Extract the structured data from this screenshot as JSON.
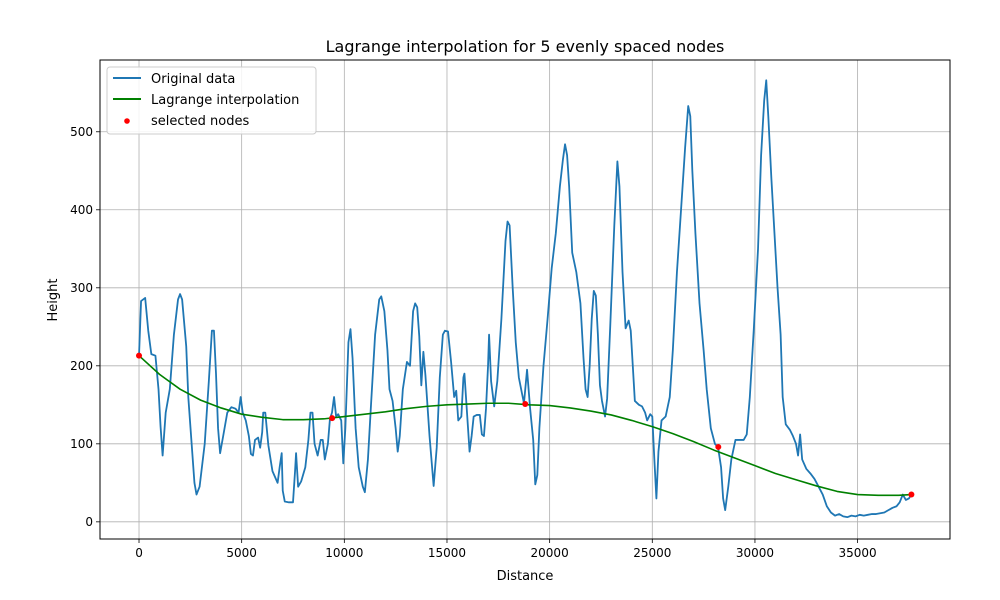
{
  "chart_data": {
    "type": "line",
    "title": "Lagrange interpolation for 5 evenly spaced nodes",
    "xlabel": "Distance",
    "ylabel": "Height",
    "xlim": [
      -1900,
      39500
    ],
    "ylim": [
      -22,
      592
    ],
    "x_ticks": [
      0,
      5000,
      10000,
      15000,
      20000,
      25000,
      30000,
      35000
    ],
    "y_ticks": [
      0,
      100,
      200,
      300,
      400,
      500
    ],
    "grid": true,
    "legend_position": "top-left",
    "legend": [
      "Original data",
      "Lagrange interpolation",
      "selected nodes"
    ],
    "colors": {
      "original": "#1f77b4",
      "lagrange": "#008000",
      "nodes": "#ff0000",
      "grid": "#b0b0b0"
    },
    "series": [
      {
        "name": "Original data",
        "points": [
          [
            0,
            213
          ],
          [
            100,
            283
          ],
          [
            300,
            287
          ],
          [
            450,
            245
          ],
          [
            600,
            215
          ],
          [
            800,
            213
          ],
          [
            950,
            170
          ],
          [
            1050,
            122
          ],
          [
            1150,
            85
          ],
          [
            1300,
            140
          ],
          [
            1500,
            170
          ],
          [
            1700,
            240
          ],
          [
            1900,
            285
          ],
          [
            2000,
            292
          ],
          [
            2100,
            285
          ],
          [
            2300,
            225
          ],
          [
            2400,
            160
          ],
          [
            2550,
            105
          ],
          [
            2700,
            50
          ],
          [
            2800,
            35
          ],
          [
            2950,
            45
          ],
          [
            3200,
            100
          ],
          [
            3400,
            180
          ],
          [
            3550,
            245
          ],
          [
            3650,
            245
          ],
          [
            3750,
            190
          ],
          [
            3850,
            120
          ],
          [
            3950,
            88
          ],
          [
            4100,
            110
          ],
          [
            4300,
            140
          ],
          [
            4500,
            147
          ],
          [
            4700,
            145
          ],
          [
            4850,
            140
          ],
          [
            4950,
            160
          ],
          [
            5050,
            140
          ],
          [
            5200,
            130
          ],
          [
            5350,
            110
          ],
          [
            5450,
            87
          ],
          [
            5550,
            85
          ],
          [
            5650,
            105
          ],
          [
            5800,
            108
          ],
          [
            5900,
            95
          ],
          [
            6000,
            115
          ],
          [
            6050,
            140
          ],
          [
            6150,
            140
          ],
          [
            6300,
            98
          ],
          [
            6500,
            65
          ],
          [
            6750,
            50
          ],
          [
            6850,
            70
          ],
          [
            6950,
            88
          ],
          [
            7000,
            40
          ],
          [
            7100,
            26
          ],
          [
            7300,
            25
          ],
          [
            7500,
            25
          ],
          [
            7600,
            65
          ],
          [
            7650,
            88
          ],
          [
            7750,
            45
          ],
          [
            7900,
            52
          ],
          [
            8100,
            70
          ],
          [
            8250,
            105
          ],
          [
            8350,
            140
          ],
          [
            8450,
            140
          ],
          [
            8550,
            100
          ],
          [
            8700,
            85
          ],
          [
            8850,
            105
          ],
          [
            8950,
            105
          ],
          [
            9050,
            80
          ],
          [
            9200,
            100
          ],
          [
            9300,
            132
          ],
          [
            9400,
            140
          ],
          [
            9500,
            160
          ],
          [
            9600,
            135
          ],
          [
            9700,
            138
          ],
          [
            9850,
            130
          ],
          [
            9950,
            75
          ],
          [
            10050,
            120
          ],
          [
            10200,
            230
          ],
          [
            10300,
            247
          ],
          [
            10400,
            210
          ],
          [
            10550,
            120
          ],
          [
            10700,
            70
          ],
          [
            10900,
            45
          ],
          [
            11000,
            38
          ],
          [
            11150,
            80
          ],
          [
            11300,
            150
          ],
          [
            11500,
            240
          ],
          [
            11700,
            285
          ],
          [
            11800,
            289
          ],
          [
            11950,
            270
          ],
          [
            12100,
            220
          ],
          [
            12200,
            170
          ],
          [
            12350,
            155
          ],
          [
            12500,
            120
          ],
          [
            12600,
            90
          ],
          [
            12700,
            110
          ],
          [
            12850,
            170
          ],
          [
            13050,
            205
          ],
          [
            13200,
            200
          ],
          [
            13350,
            270
          ],
          [
            13450,
            280
          ],
          [
            13550,
            275
          ],
          [
            13650,
            238
          ],
          [
            13750,
            175
          ],
          [
            13850,
            218
          ],
          [
            13950,
            188
          ],
          [
            14150,
            110
          ],
          [
            14350,
            46
          ],
          [
            14500,
            95
          ],
          [
            14650,
            185
          ],
          [
            14800,
            240
          ],
          [
            14900,
            245
          ],
          [
            15050,
            244
          ],
          [
            15200,
            205
          ],
          [
            15350,
            160
          ],
          [
            15450,
            168
          ],
          [
            15550,
            130
          ],
          [
            15700,
            135
          ],
          [
            15800,
            185
          ],
          [
            15850,
            190
          ],
          [
            15950,
            150
          ],
          [
            16100,
            90
          ],
          [
            16200,
            110
          ],
          [
            16300,
            135
          ],
          [
            16450,
            137
          ],
          [
            16600,
            137
          ],
          [
            16700,
            112
          ],
          [
            16800,
            110
          ],
          [
            16900,
            145
          ],
          [
            17000,
            200
          ],
          [
            17050,
            240
          ],
          [
            17150,
            180
          ],
          [
            17300,
            148
          ],
          [
            17450,
            180
          ],
          [
            17650,
            260
          ],
          [
            17850,
            360
          ],
          [
            17950,
            385
          ],
          [
            18050,
            380
          ],
          [
            18200,
            300
          ],
          [
            18350,
            230
          ],
          [
            18500,
            185
          ],
          [
            18650,
            165
          ],
          [
            18750,
            152
          ],
          [
            18900,
            195
          ],
          [
            19050,
            145
          ],
          [
            19200,
            105
          ],
          [
            19300,
            48
          ],
          [
            19400,
            60
          ],
          [
            19500,
            120
          ],
          [
            19700,
            200
          ],
          [
            19900,
            260
          ],
          [
            20100,
            325
          ],
          [
            20300,
            370
          ],
          [
            20500,
            430
          ],
          [
            20650,
            465
          ],
          [
            20750,
            484
          ],
          [
            20850,
            470
          ],
          [
            20950,
            430
          ],
          [
            21100,
            345
          ],
          [
            21300,
            320
          ],
          [
            21500,
            280
          ],
          [
            21650,
            210
          ],
          [
            21750,
            170
          ],
          [
            21850,
            160
          ],
          [
            21950,
            200
          ],
          [
            22050,
            260
          ],
          [
            22150,
            296
          ],
          [
            22250,
            290
          ],
          [
            22350,
            240
          ],
          [
            22450,
            175
          ],
          [
            22550,
            155
          ],
          [
            22700,
            135
          ],
          [
            22800,
            158
          ],
          [
            22950,
            250
          ],
          [
            23150,
            380
          ],
          [
            23300,
            462
          ],
          [
            23400,
            430
          ],
          [
            23550,
            320
          ],
          [
            23700,
            248
          ],
          [
            23850,
            258
          ],
          [
            23950,
            245
          ],
          [
            24050,
            200
          ],
          [
            24150,
            155
          ],
          [
            24350,
            150
          ],
          [
            24500,
            148
          ],
          [
            24650,
            140
          ],
          [
            24750,
            130
          ],
          [
            24900,
            138
          ],
          [
            25000,
            135
          ],
          [
            25100,
            80
          ],
          [
            25200,
            30
          ],
          [
            25300,
            90
          ],
          [
            25450,
            130
          ],
          [
            25650,
            135
          ],
          [
            25850,
            160
          ],
          [
            26000,
            220
          ],
          [
            26200,
            320
          ],
          [
            26400,
            400
          ],
          [
            26600,
            480
          ],
          [
            26750,
            533
          ],
          [
            26850,
            520
          ],
          [
            26950,
            450
          ],
          [
            27100,
            370
          ],
          [
            27300,
            280
          ],
          [
            27500,
            220
          ],
          [
            27650,
            170
          ],
          [
            27850,
            120
          ],
          [
            28050,
            100
          ],
          [
            28200,
            96
          ],
          [
            28350,
            70
          ],
          [
            28450,
            30
          ],
          [
            28550,
            15
          ],
          [
            28700,
            45
          ],
          [
            28850,
            80
          ],
          [
            29050,
            105
          ],
          [
            29250,
            105
          ],
          [
            29450,
            105
          ],
          [
            29600,
            112
          ],
          [
            29750,
            160
          ],
          [
            29950,
            250
          ],
          [
            30150,
            350
          ],
          [
            30300,
            470
          ],
          [
            30450,
            540
          ],
          [
            30550,
            566
          ],
          [
            30650,
            520
          ],
          [
            30800,
            440
          ],
          [
            30950,
            370
          ],
          [
            31100,
            300
          ],
          [
            31250,
            240
          ],
          [
            31350,
            160
          ],
          [
            31500,
            125
          ],
          [
            31700,
            118
          ],
          [
            31850,
            110
          ],
          [
            32000,
            100
          ],
          [
            32100,
            85
          ],
          [
            32200,
            112
          ],
          [
            32300,
            80
          ],
          [
            32500,
            68
          ],
          [
            32700,
            62
          ],
          [
            32900,
            55
          ],
          [
            33100,
            45
          ],
          [
            33300,
            35
          ],
          [
            33500,
            20
          ],
          [
            33700,
            12
          ],
          [
            33900,
            8
          ],
          [
            34100,
            10
          ],
          [
            34300,
            7
          ],
          [
            34500,
            6
          ],
          [
            34700,
            8
          ],
          [
            34900,
            7
          ],
          [
            35100,
            9
          ],
          [
            35300,
            8
          ],
          [
            35500,
            9
          ],
          [
            35700,
            10
          ],
          [
            35900,
            10
          ],
          [
            36100,
            11
          ],
          [
            36300,
            12
          ],
          [
            36500,
            15
          ],
          [
            36700,
            18
          ],
          [
            36900,
            20
          ],
          [
            37050,
            25
          ],
          [
            37200,
            35
          ],
          [
            37350,
            28
          ],
          [
            37500,
            30
          ],
          [
            37620,
            35
          ]
        ]
      },
      {
        "name": "Lagrange interpolation",
        "points": [
          [
            0,
            213
          ],
          [
            1000,
            189
          ],
          [
            2000,
            170
          ],
          [
            3000,
            156
          ],
          [
            4000,
            146
          ],
          [
            5000,
            138
          ],
          [
            6000,
            134
          ],
          [
            7000,
            131
          ],
          [
            8000,
            131
          ],
          [
            9000,
            132
          ],
          [
            10000,
            135
          ],
          [
            11000,
            138
          ],
          [
            12000,
            141
          ],
          [
            13000,
            145
          ],
          [
            14000,
            148
          ],
          [
            15000,
            150
          ],
          [
            16000,
            151
          ],
          [
            17000,
            152
          ],
          [
            18000,
            152
          ],
          [
            19000,
            150
          ],
          [
            20000,
            149
          ],
          [
            21000,
            146
          ],
          [
            22000,
            142
          ],
          [
            23000,
            137
          ],
          [
            24000,
            130
          ],
          [
            25000,
            122
          ],
          [
            26000,
            113
          ],
          [
            27000,
            103
          ],
          [
            28000,
            92
          ],
          [
            29000,
            82
          ],
          [
            30000,
            72
          ],
          [
            31000,
            62
          ],
          [
            32000,
            54
          ],
          [
            33000,
            46
          ],
          [
            34000,
            39
          ],
          [
            35000,
            35
          ],
          [
            36000,
            34
          ],
          [
            37000,
            34
          ],
          [
            37620,
            35
          ]
        ]
      }
    ],
    "nodes": [
      [
        0,
        213
      ],
      [
        9405,
        133
      ],
      [
        18810,
        151
      ],
      [
        28215,
        96
      ],
      [
        37620,
        35
      ]
    ]
  }
}
